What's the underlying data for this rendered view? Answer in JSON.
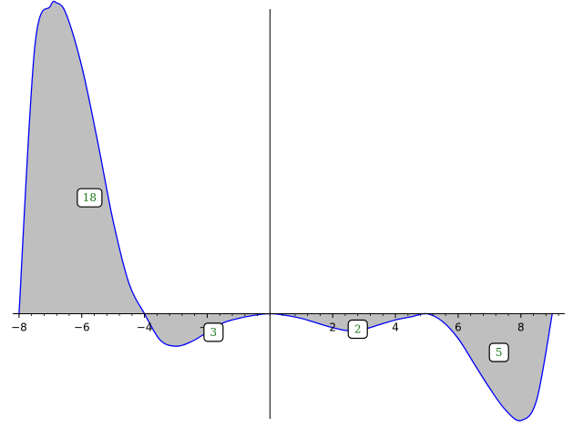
{
  "chart_data": {
    "type": "area",
    "title": "",
    "xlabel": "",
    "ylabel": "",
    "xlim": [
      -8.2,
      9.4
    ],
    "ylim": [
      -3.4,
      9.85
    ],
    "x_ticks": [
      -8,
      -6,
      -4,
      -2,
      2,
      4,
      6,
      8
    ],
    "x_tick_labels": [
      "−8",
      "−6",
      "−4",
      "−2",
      "2",
      "4",
      "6",
      "8"
    ],
    "grid": false,
    "series": [
      {
        "type": "curve",
        "color": "#0000ff",
        "fill_color": "#bfbfbf",
        "x": [
          -8,
          -7.5,
          -7,
          -6.8,
          -6.5,
          -6,
          -5.5,
          -5,
          -4.5,
          -4,
          -3.5,
          -3,
          -2.5,
          -2,
          -1.5,
          -1,
          -0.5,
          0,
          0.5,
          1,
          1.5,
          2,
          2.5,
          3,
          3.5,
          4,
          4.5,
          5,
          5.5,
          6,
          6.5,
          7,
          7.5,
          8,
          8.5,
          9
        ],
        "y": [
          0.0,
          8.6,
          9.95,
          10.05,
          9.7,
          8.0,
          5.6,
          3.0,
          1.0,
          0.0,
          -0.85,
          -1.05,
          -0.9,
          -0.6,
          -0.3,
          -0.15,
          -0.05,
          0.0,
          -0.05,
          -0.15,
          -0.3,
          -0.45,
          -0.55,
          -0.5,
          -0.35,
          -0.2,
          -0.1,
          0.0,
          -0.25,
          -0.8,
          -1.6,
          -2.4,
          -3.1,
          -3.45,
          -2.8,
          0.0
        ]
      }
    ],
    "annotations": [
      {
        "text": "18",
        "x": -5.75,
        "y": 3.75
      },
      {
        "text": "3",
        "x": -1.8,
        "y": -0.6
      },
      {
        "text": "2",
        "x": 2.8,
        "y": -0.5
      },
      {
        "text": "5",
        "x": 7.3,
        "y": -1.25
      }
    ]
  }
}
